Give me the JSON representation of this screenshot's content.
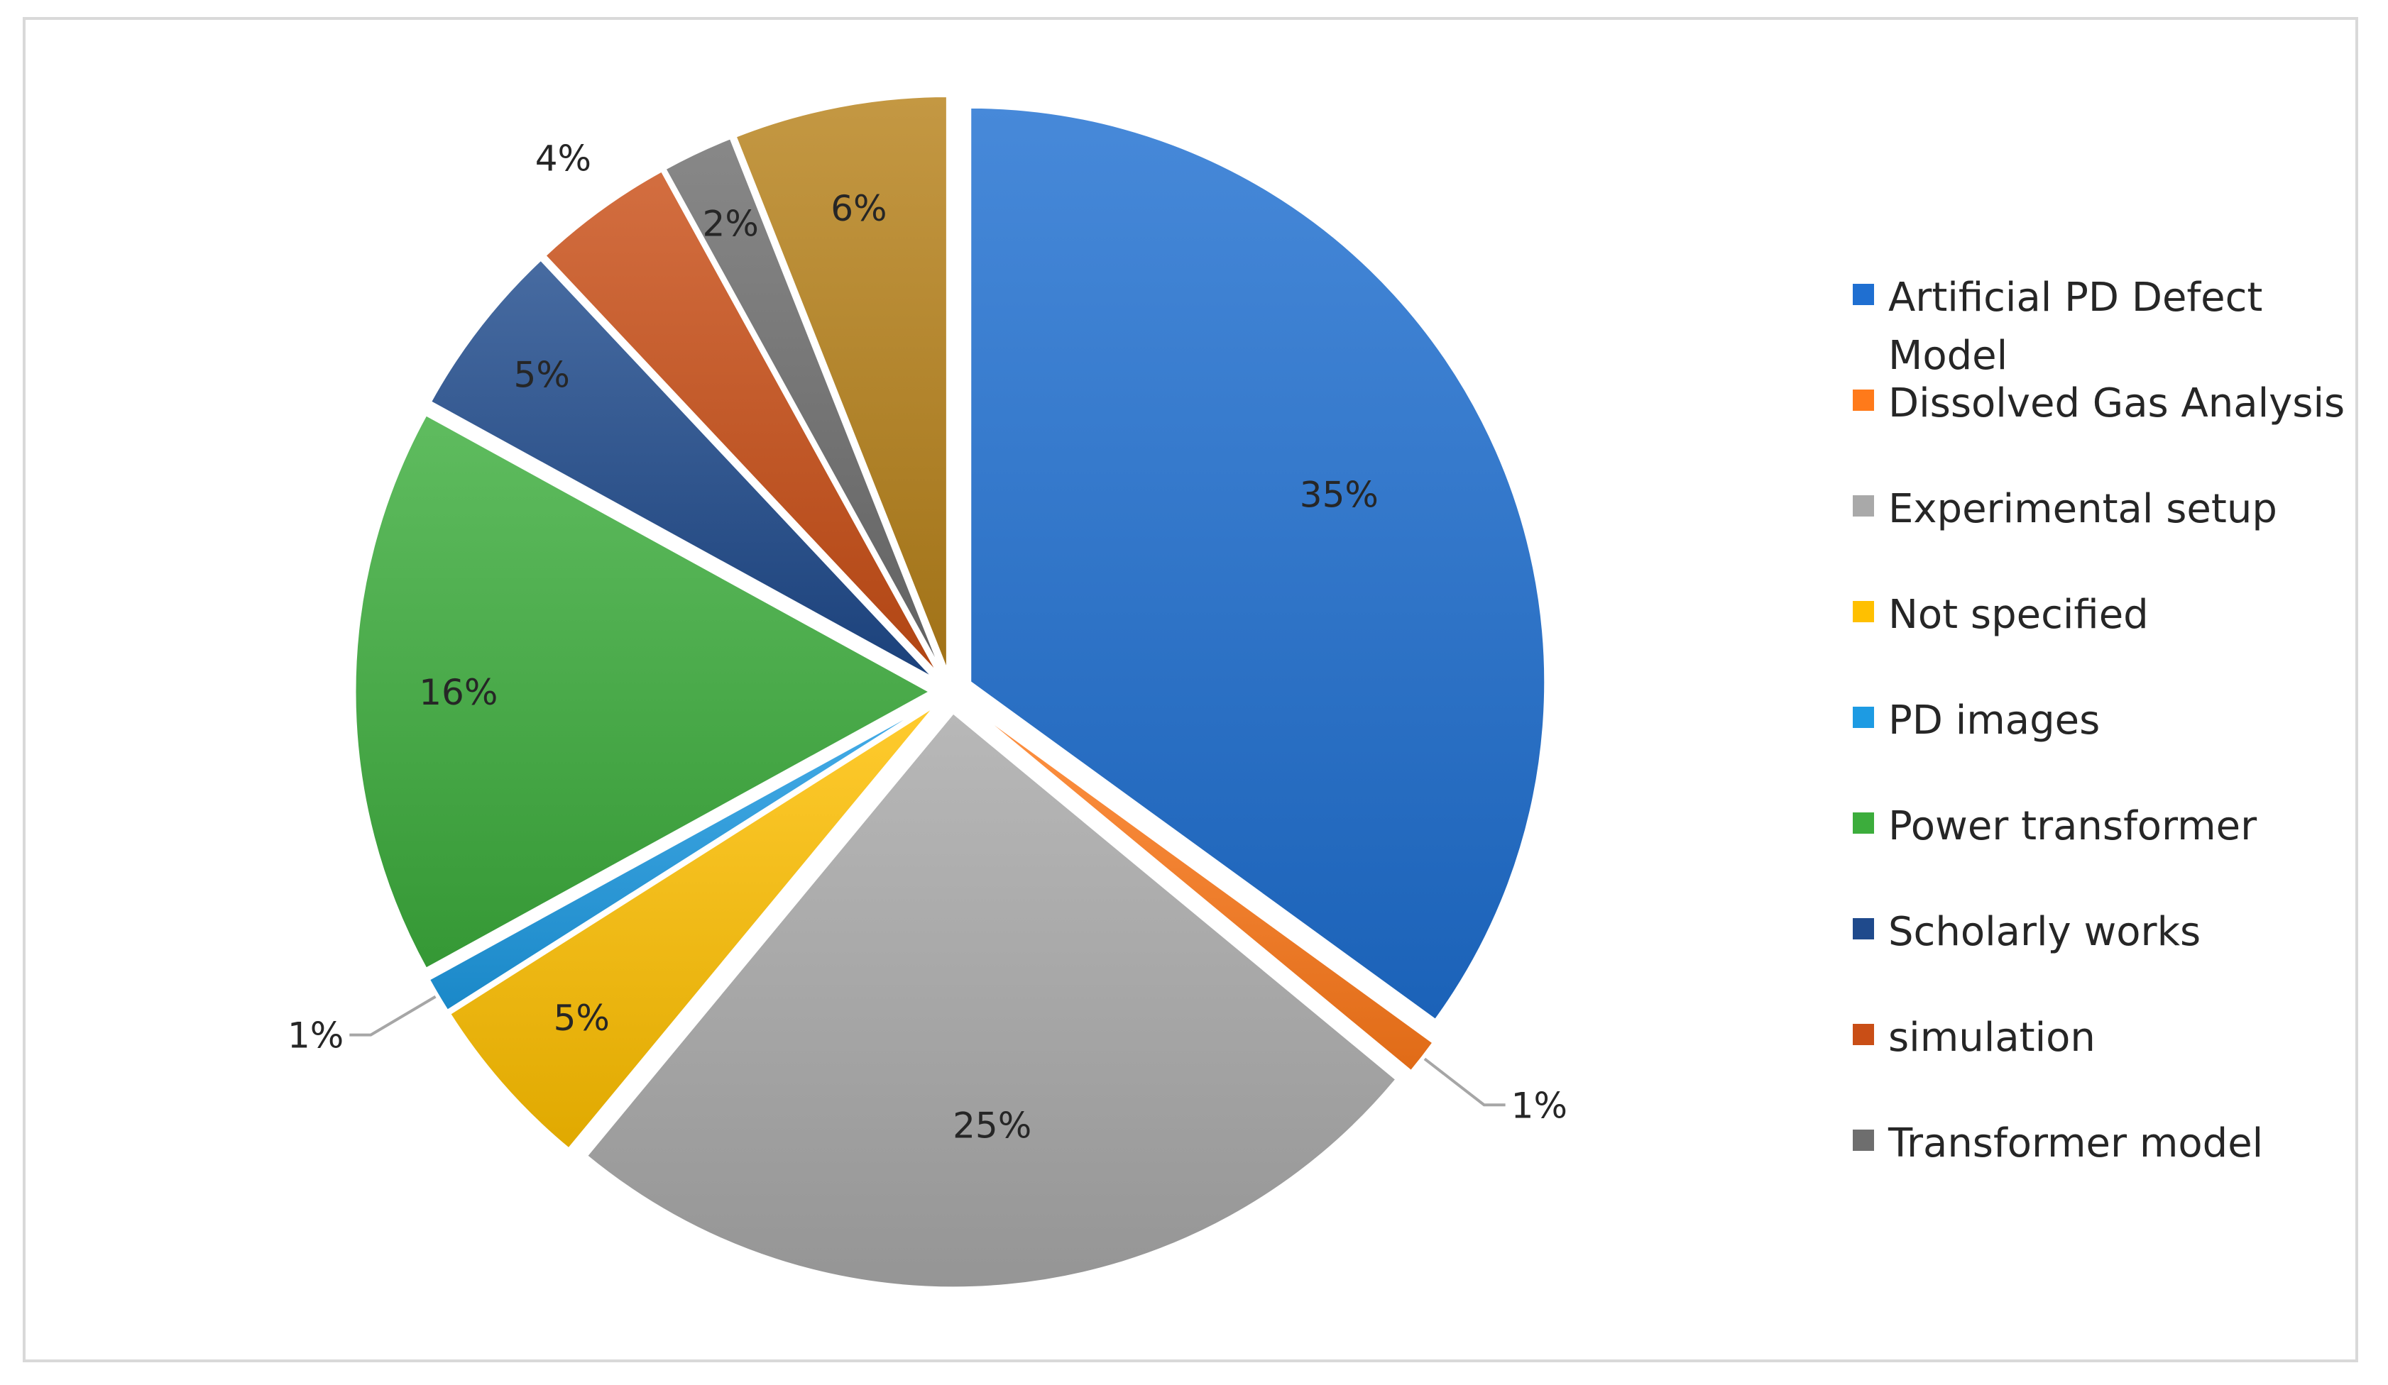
{
  "chart_data": {
    "type": "pie",
    "title": "",
    "exploded": true,
    "legend_position": "right",
    "slices": [
      {
        "label": "Artificial PD Defect Model",
        "value": 35,
        "display": "35%",
        "color": "#1f6fd1"
      },
      {
        "label": "Dissolved Gas Analysis",
        "value": 1,
        "display": "1%",
        "color": "#ff7a1a"
      },
      {
        "label": "Experimental setup",
        "value": 25,
        "display": "25%",
        "color": "#a9a9a9"
      },
      {
        "label": "Not specified",
        "value": 5,
        "display": "5%",
        "color": "#ffc000"
      },
      {
        "label": "PD images",
        "value": 1,
        "display": "1%",
        "color": "#1d9be3"
      },
      {
        "label": "Power transformer",
        "value": 16,
        "display": "16%",
        "color": "#3cad3c"
      },
      {
        "label": "Scholarly works",
        "value": 5,
        "display": "5%",
        "color": "#1f4a8c"
      },
      {
        "label": "simulation",
        "value": 4,
        "display": "4%",
        "color": "#c94e16"
      },
      {
        "label": "Transformer model",
        "value": 2,
        "display": "2%",
        "color": "#6e6e6e"
      },
      {
        "label": "",
        "value": 6,
        "display": "6%",
        "color": "#b7811a"
      }
    ]
  }
}
